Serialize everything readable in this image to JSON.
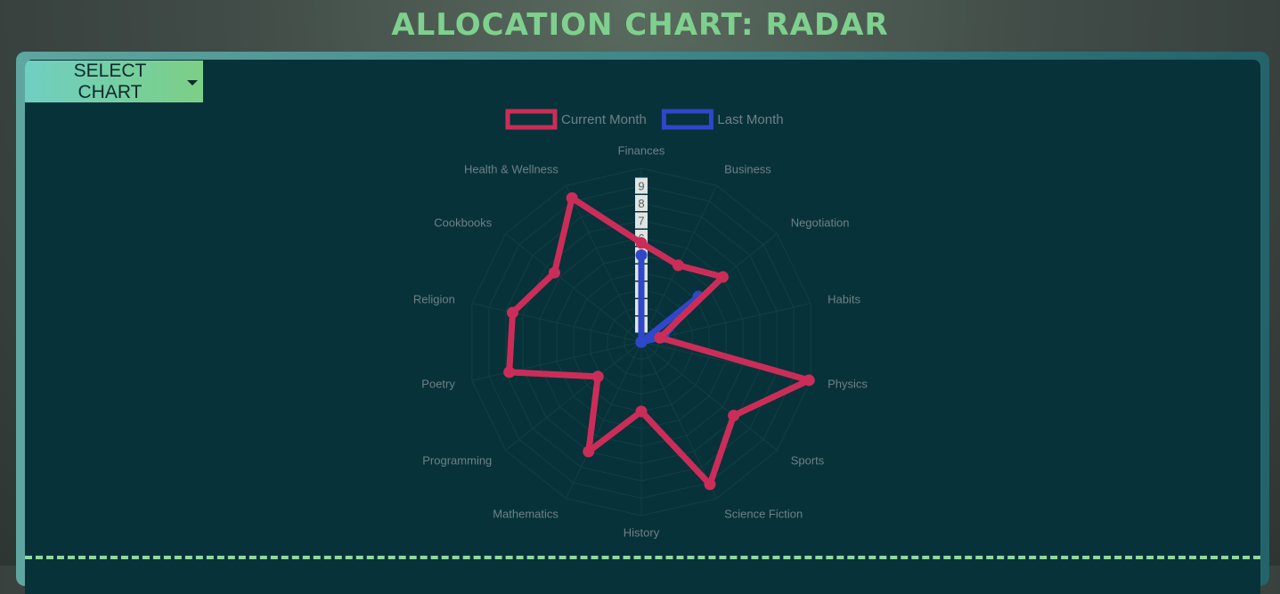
{
  "page": {
    "title": "ALLOCATION CHART: RADAR"
  },
  "controls": {
    "select_chart_label": "SELECT CHART",
    "select_chart_icon": "caret-down-icon"
  },
  "colors": {
    "title": "#7fd08e",
    "panel_bg": "#07323a",
    "current_month": "#cc2d58",
    "last_month": "#2f47c9",
    "grid": "#123f43",
    "label": "#6e8186"
  },
  "chart_data": {
    "type": "radar",
    "categories": [
      "Finances",
      "Business",
      "Negotiation",
      "Habits",
      "Physics",
      "Sports",
      "Science Fiction",
      "History",
      "Mathematics",
      "Programming",
      "Poetry",
      "Religion",
      "Cookbooks",
      "Health & Wellness"
    ],
    "series": [
      {
        "name": "Current Month",
        "values": [
          5.7,
          4.9,
          6.0,
          1.1,
          9.9,
          6.8,
          9.1,
          4.0,
          7.0,
          3.2,
          7.8,
          7.6,
          6.4,
          9.2
        ]
      },
      {
        "name": "Last Month",
        "values": [
          5.0,
          0,
          4.2,
          1.3,
          0,
          0,
          0,
          0,
          0,
          0,
          0,
          0,
          0,
          0
        ]
      }
    ],
    "r_ticks": [
      "1",
      "2",
      "3",
      "4",
      "5",
      "6",
      "7",
      "8",
      "9"
    ],
    "r_range": [
      0,
      10
    ],
    "legend_position": "top",
    "grid": true
  }
}
